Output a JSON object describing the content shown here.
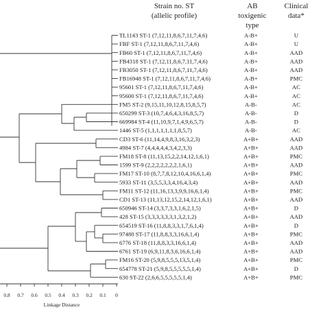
{
  "headers": {
    "strain_title": "Strain no. ST",
    "strain_sub": "(allelic profile)",
    "ab_title": "AB",
    "ab_sub1": "toxigenic",
    "ab_sub2": "type",
    "clin_title": "Clinical",
    "clin_sub": "data*"
  },
  "rows": [
    {
      "strain": "TL1143 ST-1 (7,12,11,8,6,7,11,7,4,6)",
      "ab": "A-B+",
      "clin": "U"
    },
    {
      "strain": "FBF ST-1 (7,12,11,8,6,7,11,7,4,6)",
      "ab": "A-B+",
      "clin": "U"
    },
    {
      "strain": "FB60 ST-1 (7,12,11,8,6,7,11,7,4,6)",
      "ab": "A-B+",
      "clin": "AAD"
    },
    {
      "strain": "FB4318 ST-1 (7,12,11,8,6,7,11,7,4,6)",
      "ab": "A-B+",
      "clin": "AAD"
    },
    {
      "strain": "FB3050 ST-1 (7,12,11,8,6,7,11,7,4,6)",
      "ab": "A-B+",
      "clin": "AAD"
    },
    {
      "strain": "FB16948 ST-1 (7,12,11,8,6,7,11,7,4,6)",
      "ab": "A-B+",
      "clin": "PMC"
    },
    {
      "strain": "95601 ST-1 (7,12,11,8,6,7,11,7,4,6)",
      "ab": "A-B+",
      "clin": "AC"
    },
    {
      "strain": "95600 ST-1 (7,12,11,8,6,7,11,7,4,6)",
      "ab": "A-B+",
      "clin": "AC"
    },
    {
      "strain": "FM5 ST-2 (9,15,11,10,12,8,15,8,5,7)",
      "ab": "A-B-",
      "clin": "AC"
    },
    {
      "strain": "650299 ST-3 (10,7,4,6,4,3,16,8,5,7)",
      "ab": "A-B-",
      "clin": "D"
    },
    {
      "strain": "669984 ST-4 (11,10,9,7,1,4,9,6,5,7)",
      "ab": "A-B-",
      "clin": "D"
    },
    {
      "strain": "1446 ST-5 (1,1,1,1,1,1,1,8,5,7)",
      "ab": "A-B-",
      "clin": "AC"
    },
    {
      "strain": "CD3 ST-6 (11,14,4,9,8,3,16,3,2,3)",
      "ab": "A+B+",
      "clin": "AAD"
    },
    {
      "strain": "4984 ST-7 (4,4,4,4,4,3,4,2,3,3)",
      "ab": "A+B+",
      "clin": "AAD"
    },
    {
      "strain": "FM18 ST-8 (11,13,15,2,2,14,12,1,6,1)",
      "ab": "A+B+",
      "clin": "PMC"
    },
    {
      "strain": "1599 ST-9 (2,2,2,2,2,2,2,1,6,1)",
      "ab": "A+B+",
      "clin": "AAD"
    },
    {
      "strain": "FM17 ST-10 (8,7,7,8,12,10,4,16,6,1,4)",
      "ab": "A+B+",
      "clin": "PMC"
    },
    {
      "strain": "5933 ST-11 (3,5,5,3,3,4,16,4,3,4)",
      "ab": "A+B+",
      "clin": "AAD"
    },
    {
      "strain": "FM11 ST-12 (11,16,13,3,9,9,16,6,1,4)",
      "ab": "A+B+",
      "clin": "PMC"
    },
    {
      "strain": "CD1 ST-13 (11,13,12,15,2,14,12,1,6,1)",
      "ab": "A+B+",
      "clin": "AAD"
    },
    {
      "strain": "650946 ST-14 (3,3,7,3,3,1,6,2,1,5)",
      "ab": "A+B+",
      "clin": "D"
    },
    {
      "strain": "428 ST-15 (3,3,3,3,3,3,1,3,2,1,2)",
      "ab": "A+B+",
      "clin": "AAD"
    },
    {
      "strain": "654519 ST-16 (11,8,8,3,3,1,7,6,1,4)",
      "ab": "A+B+",
      "clin": "D"
    },
    {
      "strain": "97480 ST-17 (11,8,8,3,3,16,6,1,4)",
      "ab": "A+B+",
      "clin": "PMC"
    },
    {
      "strain": "6776 ST-18 (11,8,8,3,3,16,6,1,4)",
      "ab": "A+B+",
      "clin": "AAD"
    },
    {
      "strain": "6761 ST-19 (6,9,11,8,3,6,16,6,1,4)",
      "ab": "A+B+",
      "clin": "AAD"
    },
    {
      "strain": "FM16 ST-20 (5,9,8,5,5,5,13,5,1,4)",
      "ab": "A+B+",
      "clin": "PMC"
    },
    {
      "strain": "654778 ST-21 (5,9,8,5,5,5,5,5,1,4)",
      "ab": "A+B+",
      "clin": "D"
    },
    {
      "strain": "630 ST-22 (2,6,6,5,5,5,5,5,1,4)",
      "ab": "A+B+",
      "clin": "PMC"
    }
  ],
  "axis": {
    "ticks": [
      "0.8",
      "0.7",
      "0.6",
      "0.5",
      "0.4",
      "0.3",
      "0.2",
      "0.1",
      "0"
    ],
    "label": "Linkage Distance"
  }
}
